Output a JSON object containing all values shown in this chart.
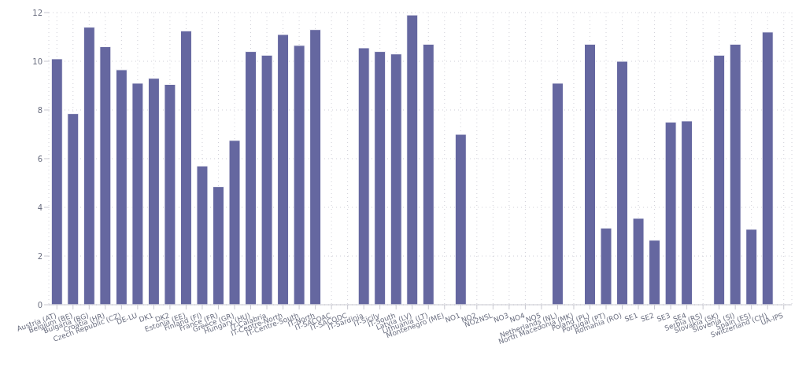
{
  "chart_data": {
    "type": "bar",
    "categories": [
      "Austria (AT)",
      "Belgium (BE)",
      "Bulgaria (BG)",
      "Croatia (HR)",
      "Czech Republic (CZ)",
      "DE-LU",
      "DK1",
      "DK2",
      "Estonia (EE)",
      "Finland (FI)",
      "France (FR)",
      "Greece (GR)",
      "Hungary (HU)",
      "IT-Calabria",
      "IT-Centre-North",
      "IT-Centre-South",
      "IT-North",
      "IT-SACOAC",
      "IT-SACODC",
      "IT-Sardinia",
      "IT-Sicily",
      "IT-South",
      "Latvia (LV)",
      "Lithuania (LT)",
      "Montenegro (ME)",
      "NO1",
      "NO2",
      "NO2NSL",
      "NO3",
      "NO4",
      "NO5",
      "Netherlands (NL)",
      "North Macedonia (MK)",
      "Poland (PL)",
      "Portugal (PT)",
      "Romania (RO)",
      "SE1",
      "SE2",
      "SE3",
      "SE4",
      "Serbia (RS)",
      "Slovakia (SK)",
      "Slovenia (SI)",
      "Spain (ES)",
      "Switzerland (CH)",
      "UA-IPS"
    ],
    "values": [
      10.1,
      7.85,
      11.4,
      10.6,
      9.65,
      9.1,
      9.3,
      9.05,
      11.25,
      5.7,
      4.85,
      6.75,
      10.4,
      10.25,
      11.1,
      10.65,
      11.3,
      null,
      null,
      10.55,
      10.4,
      10.3,
      11.9,
      10.7,
      null,
      7.0,
      null,
      null,
      null,
      null,
      null,
      9.1,
      null,
      10.7,
      3.15,
      10.0,
      3.55,
      2.65,
      7.5,
      7.55,
      null,
      10.25,
      10.7,
      3.1,
      11.2,
      null
    ],
    "color": "#6567a0",
    "ylim": [
      0,
      12
    ],
    "yticks": [
      0,
      2,
      4,
      6,
      8,
      10,
      12
    ],
    "grid": true
  }
}
